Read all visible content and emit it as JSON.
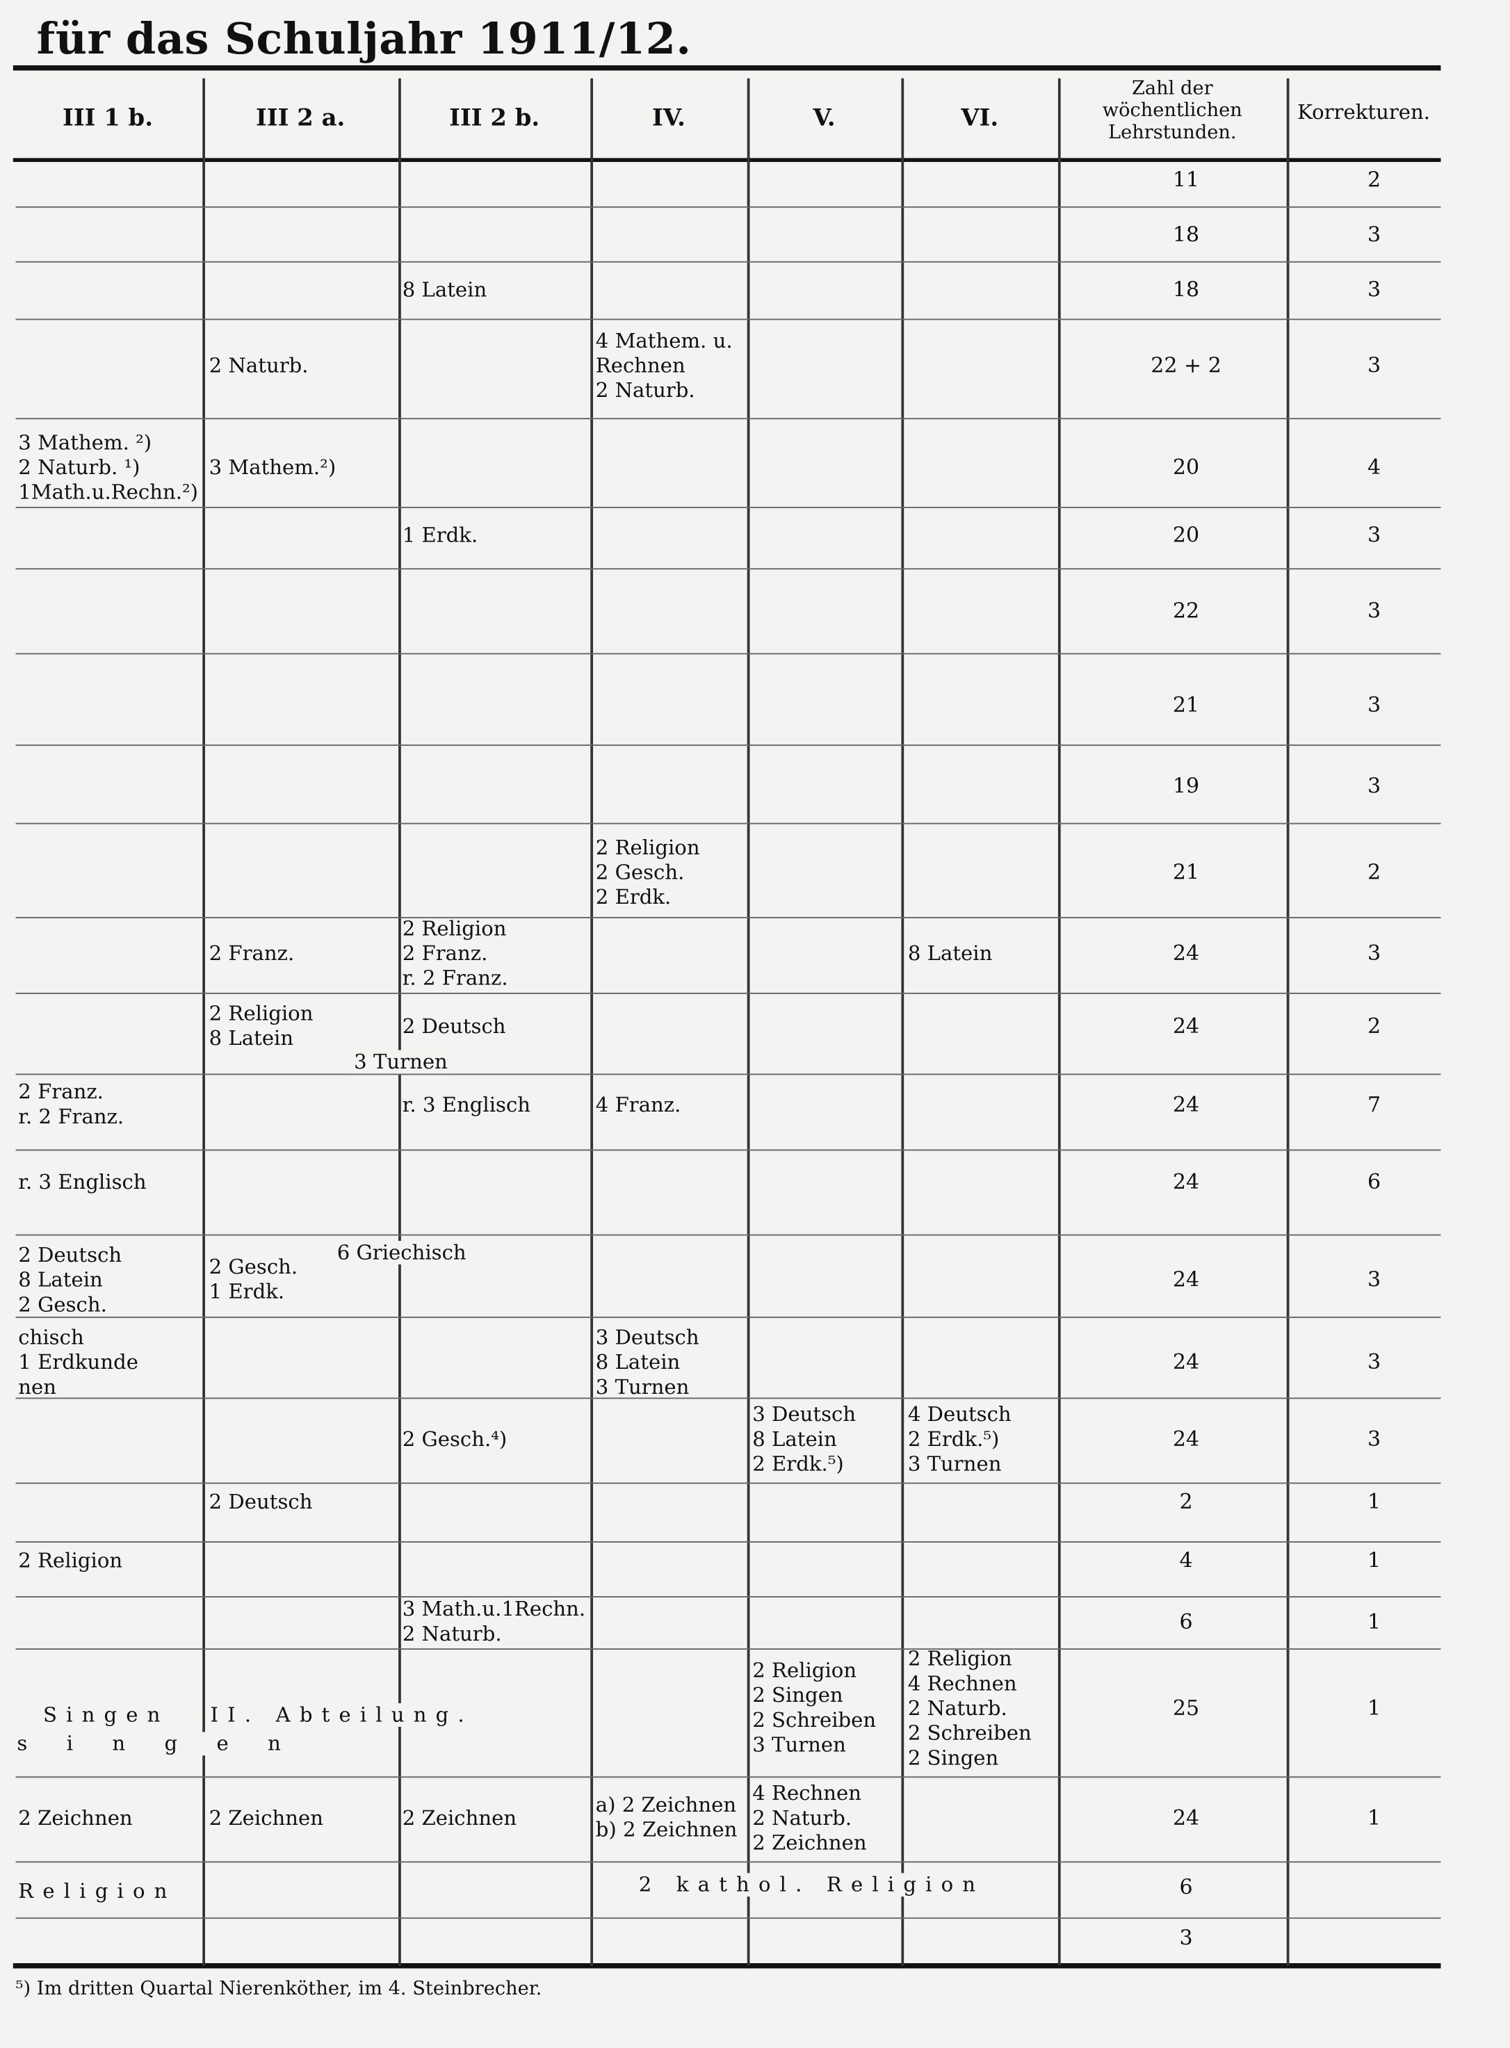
{
  "title": "für das Schuljahr 1911/12.",
  "headers": [
    "III 1 b.",
    "III 2 a.",
    "III 2 b.",
    "IV.",
    "V.",
    "VI.",
    "Zahl der\nwöchentlichen\nLehrstunden.",
    "Korrekturen."
  ],
  "rows": [
    {
      "cells": {},
      "hours": "11",
      "corrections": "2"
    },
    {
      "cells": {},
      "hours": "18",
      "corrections": "3"
    },
    {
      "cells": {
        "2": "8 Latein"
      },
      "hours": "18",
      "corrections": "3"
    },
    {
      "cells": {
        "1": "2 Naturb.",
        "3": "4 Mathem. u.\nRechnen\n2 Naturb."
      },
      "hours": "22 + 2",
      "corrections": "3"
    },
    {
      "cells": {
        "0": "3 Mathem. ²)\n2 Naturb. ¹)\n1Math.u.Rechn.²)",
        "1": "3 Mathem.²)"
      },
      "hours": "20",
      "corrections": "4"
    },
    {
      "cells": {
        "2": "1 Erdk."
      },
      "hours": "20",
      "corrections": "3"
    },
    {
      "cells": {},
      "hours": "22",
      "corrections": "3"
    },
    {
      "cells": {},
      "hours": "21",
      "corrections": "3"
    },
    {
      "cells": {},
      "hours": "19",
      "corrections": "3"
    },
    {
      "cells": {
        "3": "2 Religion\n2 Gesch.\n2 Erdk."
      },
      "hours": "21",
      "corrections": "2"
    },
    {
      "cells": {
        "1": "2 Franz.",
        "2": "2 Religion\n2 Franz.\nr. 2 Franz.",
        "5": "8 Latein"
      },
      "hours": "24",
      "corrections": "3"
    },
    {
      "cells": {
        "1": "2 Religion\n8 Latein",
        "2": "2 Deutsch"
      },
      "hours": "24",
      "corrections": "2"
    },
    {
      "cells": {
        "0": "2 Franz.\nr. 2 Franz.",
        "2": "r. 3 Englisch",
        "3": "4 Franz."
      },
      "hours": "24",
      "corrections": "7"
    },
    {
      "cells": {
        "0": "r. 3 Englisch"
      },
      "hours": "24",
      "corrections": "6"
    },
    {
      "cells": {
        "0": "2 Deutsch\n8 Latein\n2 Gesch.",
        "1": "2 Gesch.\n1 Erdk."
      },
      "hours": "24",
      "corrections": "3"
    },
    {
      "cells": {
        "0": "chisch\n1 Erdkunde\nnen",
        "3": "3 Deutsch\n8 Latein\n3 Turnen"
      },
      "hours": "24",
      "corrections": "3"
    },
    {
      "cells": {
        "2": "2 Gesch.⁴)",
        "4": "3 Deutsch\n8 Latein\n2 Erdk.⁵)",
        "5": "4 Deutsch\n2 Erdk.⁵)\n3 Turnen"
      },
      "hours": "24",
      "corrections": "3"
    },
    {
      "cells": {
        "1": "2 Deutsch"
      },
      "hours": "2",
      "corrections": "1"
    },
    {
      "cells": {
        "0": "2 Religion"
      },
      "hours": "4",
      "corrections": "1"
    },
    {
      "cells": {
        "2": "3 Math.u.1Rechn.\n2 Naturb."
      },
      "hours": "6",
      "corrections": "1"
    },
    {
      "cells": {
        "4": "2 Religion\n2 Singen\n2 Schreiben\n3 Turnen",
        "5": "2 Religion\n4 Rechnen\n2 Naturb.\n2 Schreiben\n2 Singen"
      },
      "hours": "25",
      "corrections": "1"
    },
    {
      "cells": {
        "0": "2 Zeichnen",
        "1": "2 Zeichnen",
        "2": "2 Zeichnen",
        "3": "a) 2 Zeichnen\nb) 2 Zeichnen",
        "4": "4 Rechnen\n2 Naturb.\n2 Zeichnen"
      },
      "hours": "24",
      "corrections": "1"
    },
    {
      "cells": {},
      "hours": "6",
      "corrections": ""
    },
    {
      "cells": {},
      "hours": "3",
      "corrections": ""
    }
  ],
  "spans": {
    "turnen": "3 Turnen",
    "griechisch": "6 Griechisch",
    "singen_a": "Singen",
    "singen_b": "II. Abteilung.",
    "singen_c": "singen",
    "religion": "Religion",
    "kathol": "2 kathol. Religion"
  },
  "footnote": "⁵) Im dritten Quartal Nierenköther, im 4. Steinbrecher."
}
